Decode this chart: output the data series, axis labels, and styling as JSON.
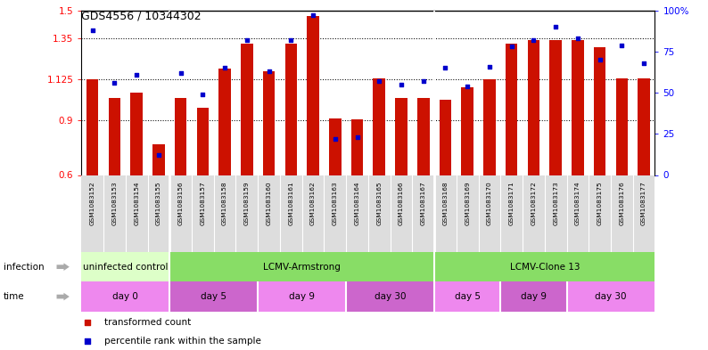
{
  "title": "GDS4556 / 10344302",
  "samples": [
    "GSM1083152",
    "GSM1083153",
    "GSM1083154",
    "GSM1083155",
    "GSM1083156",
    "GSM1083157",
    "GSM1083158",
    "GSM1083159",
    "GSM1083160",
    "GSM1083161",
    "GSM1083162",
    "GSM1083163",
    "GSM1083164",
    "GSM1083165",
    "GSM1083166",
    "GSM1083167",
    "GSM1083168",
    "GSM1083169",
    "GSM1083170",
    "GSM1083171",
    "GSM1083172",
    "GSM1083173",
    "GSM1083174",
    "GSM1083175",
    "GSM1083176",
    "GSM1083177"
  ],
  "bar_values": [
    1.125,
    1.02,
    1.05,
    0.77,
    1.02,
    0.97,
    1.18,
    1.32,
    1.17,
    1.32,
    1.47,
    0.91,
    0.905,
    1.13,
    1.02,
    1.02,
    1.01,
    1.08,
    1.125,
    1.32,
    1.34,
    1.34,
    1.34,
    1.3,
    1.13,
    1.13
  ],
  "percentile_values": [
    88,
    56,
    61,
    12,
    62,
    49,
    65,
    82,
    63,
    82,
    97,
    22,
    23,
    57,
    55,
    57,
    65,
    54,
    66,
    78,
    82,
    90,
    83,
    70,
    79,
    68
  ],
  "ylim_left": [
    0.6,
    1.5
  ],
  "ylim_right": [
    0,
    100
  ],
  "yticks_left": [
    0.6,
    0.9,
    1.125,
    1.35,
    1.5
  ],
  "ytick_labels_left": [
    "0.6",
    "0.9",
    "1.125",
    "1.35",
    "1.5"
  ],
  "yticks_right": [
    0,
    25,
    50,
    75,
    100
  ],
  "ytick_labels_right": [
    "0",
    "25",
    "50",
    "75",
    "100%"
  ],
  "bar_color": "#CC1100",
  "square_color": "#0000CC",
  "gridline_y": [
    0.9,
    1.125,
    1.35
  ],
  "inf_groups": [
    {
      "label": "uninfected control",
      "start": 0,
      "end": 4,
      "color": "#DDFFC8"
    },
    {
      "label": "LCMV-Armstrong",
      "start": 4,
      "end": 16,
      "color": "#88DD66"
    },
    {
      "label": "LCMV-Clone 13",
      "start": 16,
      "end": 26,
      "color": "#88DD66"
    }
  ],
  "time_groups": [
    {
      "label": "day 0",
      "start": 0,
      "end": 4,
      "color": "#EE88EE"
    },
    {
      "label": "day 5",
      "start": 4,
      "end": 8,
      "color": "#CC66CC"
    },
    {
      "label": "day 9",
      "start": 8,
      "end": 12,
      "color": "#EE88EE"
    },
    {
      "label": "day 30",
      "start": 12,
      "end": 16,
      "color": "#CC66CC"
    },
    {
      "label": "day 5",
      "start": 16,
      "end": 19,
      "color": "#EE88EE"
    },
    {
      "label": "day 9",
      "start": 19,
      "end": 22,
      "color": "#CC66CC"
    },
    {
      "label": "day 30",
      "start": 22,
      "end": 26,
      "color": "#EE88EE"
    }
  ],
  "legend_bar_label": "transformed count",
  "legend_sq_label": "percentile rank within the sample",
  "inf_row_label": "infection",
  "time_row_label": "time",
  "xticklabel_bg": "#DDDDDD",
  "bg_color": "#FFFFFF"
}
